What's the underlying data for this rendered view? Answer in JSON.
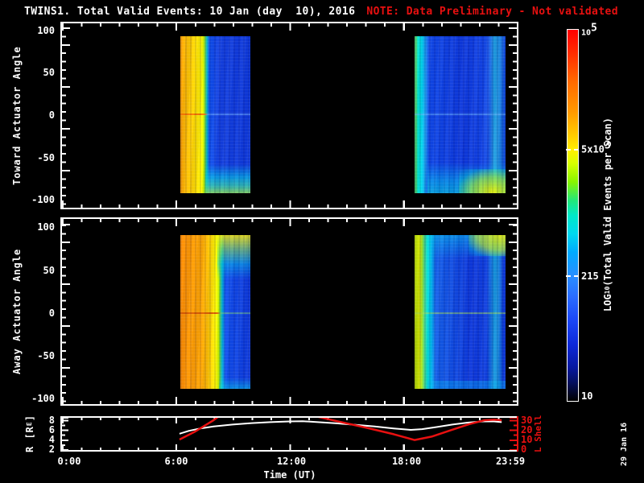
{
  "title": {
    "main": "TWINS1. Total Valid Events: 10 Jan (day  10), 2016",
    "note": "NOTE: Data Preliminary - Not validated"
  },
  "panels": {
    "top": {
      "ylabel": "Toward Actuator Angle"
    },
    "middle": {
      "ylabel": "Away Actuator Angle"
    },
    "bottom": {
      "ylabel_pre": "R [R",
      "ylabel_sub": "E",
      "ylabel_post": "]",
      "right_label": "L Shell"
    }
  },
  "axes": {
    "angle_ticks": [
      "100",
      "50",
      "0",
      "-50",
      "-100"
    ],
    "r_ticks": [
      "8",
      "6",
      "4",
      "2"
    ],
    "l_ticks": [
      "30",
      "20",
      "10",
      "0"
    ],
    "x_ticks": [
      "0:00",
      "6:00",
      "12:00",
      "18:00",
      "23:59"
    ],
    "xlabel": "Time (UT)"
  },
  "colorbar": {
    "title_pre": "LOG",
    "title_sub": "10",
    "title_post": "(Total Valid Events per Scan)",
    "t1_base": "10",
    "t1_exp": "5",
    "t2_base": "5x10",
    "t2_exp": "3",
    "t3": "215",
    "t4": "10"
  },
  "watermark": "29 Jan 16",
  "colors": {
    "background": "#000000",
    "frame": "#ffffff",
    "annotation_red": "#e81010",
    "r_curve": "#ffffff",
    "l_curve": "#e81010"
  },
  "chart_data": [
    {
      "type": "heatmap",
      "title": "TWINS1. Total Valid Events: 10 Jan (day 10), 2016",
      "panel": "Toward Actuator Angle",
      "xlabel": "Time (UT)",
      "ylabel": "Toward Actuator Angle",
      "xlim_hours": [
        0,
        24
      ],
      "ylim": [
        -110,
        110
      ],
      "data_extent_deg": [
        -90,
        90
      ],
      "colorbar": {
        "label": "LOG10(Total Valid Events per Scan)",
        "scale": "log",
        "range": [
          10,
          100000
        ],
        "labeled_ticks": [
          10,
          215,
          5000,
          100000
        ]
      },
      "coverage_intervals": [
        {
          "start_ut": "6:15",
          "end_ut": "9:55",
          "pattern": "orange/yellow high-count column 06:15-07:10 (~1e4-1e5), then low blue body (~100-300); cyan-green band below -75 deg; orange line at 0 deg"
        },
        {
          "start_ut": "18:30",
          "end_ut": "23:10",
          "pattern": "cyan edge column at start, blue body, brighter cyan column near 22:30-23:00, yellow-green patch near -80 deg at end"
        }
      ]
    },
    {
      "type": "heatmap",
      "panel": "Away Actuator Angle",
      "xlabel": "Time (UT)",
      "ylabel": "Away Actuator Angle",
      "xlim_hours": [
        0,
        24
      ],
      "ylim": [
        -110,
        110
      ],
      "data_extent_deg": [
        -90,
        90
      ],
      "colorbar": {
        "label": "LOG10(Total Valid Events per Scan)",
        "scale": "log",
        "range": [
          10,
          100000
        ],
        "labeled_ticks": [
          10,
          215,
          5000,
          100000
        ]
      },
      "coverage_intervals": [
        {
          "start_ut": "6:15",
          "end_ut": "9:55",
          "pattern": "broad orange high-count column 06:15-07:30, yellow-green-cyan fade near +90 deg, blue body below; dark-orange line at 0 deg"
        },
        {
          "start_ut": "18:30",
          "end_ut": "23:10",
          "pattern": "yellow-green edge column at start, cyan fringe, blue body, yellow patch near +90 deg at end, faint yellow-green line at 0 deg"
        }
      ]
    },
    {
      "type": "line",
      "panel": "ephemeris",
      "ylabel_left": "R [RE]",
      "ylim_left": [
        1.7,
        8.8
      ],
      "yticks_left": [
        2,
        4,
        6,
        8
      ],
      "ylabel_right": "L Shell",
      "ylim_right": [
        0,
        34
      ],
      "yticks_right": [
        0,
        10,
        20,
        30
      ],
      "x_ticks": [
        "0:00",
        "6:00",
        "12:00",
        "18:00",
        "23:59"
      ],
      "series": [
        {
          "name": "R",
          "color": "#ffffff",
          "axis": "left",
          "width": 2,
          "points": [
            [
              6.2,
              5.2
            ],
            [
              6.7,
              5.8
            ],
            [
              7.3,
              6.3
            ],
            [
              8,
              6.7
            ],
            [
              9,
              7.1
            ],
            [
              10,
              7.4
            ],
            [
              11,
              7.6
            ],
            [
              12,
              7.75
            ],
            [
              12.7,
              7.8
            ],
            [
              13.5,
              7.6
            ],
            [
              14.5,
              7.35
            ],
            [
              15.5,
              7.05
            ],
            [
              16.5,
              6.7
            ],
            [
              17.5,
              6.3
            ],
            [
              18.4,
              6.0
            ],
            [
              19,
              6.15
            ],
            [
              19.8,
              6.6
            ],
            [
              20.6,
              7.1
            ],
            [
              21.4,
              7.5
            ],
            [
              22.2,
              7.75
            ],
            [
              22.8,
              7.75
            ],
            [
              23.2,
              7.6
            ]
          ]
        },
        {
          "name": "L Shell",
          "color": "#e81010",
          "axis": "right",
          "width": 2.5,
          "segments": [
            [
              [
                6.2,
                10
              ],
              [
                7.0,
                18
              ],
              [
                8.0,
                30
              ],
              [
                8.3,
                34.5
              ]
            ],
            [
              [
                13.3,
                34.5
              ],
              [
                14.5,
                29
              ],
              [
                16,
                22.5
              ],
              [
                17.5,
                15.5
              ],
              [
                18.6,
                9.5
              ],
              [
                19.5,
                13
              ],
              [
                20.5,
                19.5
              ],
              [
                21.5,
                26
              ],
              [
                22.3,
                30
              ],
              [
                22.8,
                30.5
              ],
              [
                23.2,
                30
              ]
            ]
          ]
        }
      ]
    }
  ]
}
